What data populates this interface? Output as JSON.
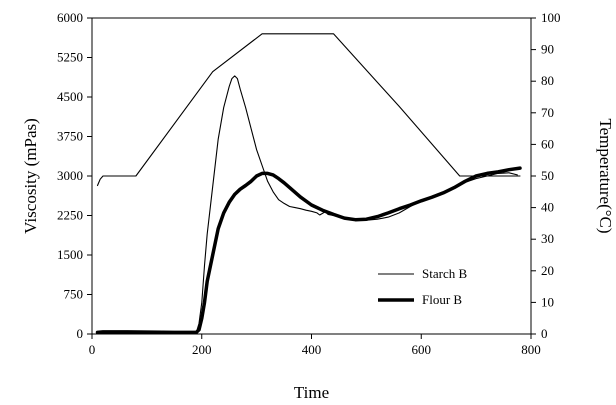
{
  "chart_data": {
    "type": "line",
    "title": "",
    "xlabel": "Time",
    "ylabel": "Viscosity (mPas)",
    "y2label": "Temperature(°C)",
    "xlim": [
      0,
      800
    ],
    "ylim": [
      0,
      6000
    ],
    "y2lim": [
      0,
      100
    ],
    "x_ticks": [
      "0",
      "200",
      "400",
      "600",
      "800"
    ],
    "y_ticks": [
      "0",
      "750",
      "1500",
      "2250",
      "3000",
      "3750",
      "4500",
      "5250",
      "6000"
    ],
    "y2_ticks": [
      "0",
      "10",
      "20",
      "30",
      "40",
      "50",
      "60",
      "70",
      "80",
      "90",
      "100"
    ],
    "grid": false,
    "legend_position": "lower-right",
    "series": [
      {
        "name": "Starch B",
        "axis": "left",
        "style": "thin",
        "points": [
          [
            10,
            30
          ],
          [
            20,
            40
          ],
          [
            60,
            40
          ],
          [
            150,
            30
          ],
          [
            190,
            30
          ],
          [
            195,
            200
          ],
          [
            200,
            600
          ],
          [
            205,
            1300
          ],
          [
            210,
            1900
          ],
          [
            220,
            2800
          ],
          [
            230,
            3700
          ],
          [
            240,
            4300
          ],
          [
            250,
            4700
          ],
          [
            255,
            4850
          ],
          [
            260,
            4900
          ],
          [
            265,
            4850
          ],
          [
            270,
            4650
          ],
          [
            280,
            4300
          ],
          [
            290,
            3900
          ],
          [
            300,
            3500
          ],
          [
            310,
            3200
          ],
          [
            320,
            2900
          ],
          [
            330,
            2700
          ],
          [
            340,
            2550
          ],
          [
            350,
            2480
          ],
          [
            360,
            2420
          ],
          [
            370,
            2400
          ],
          [
            380,
            2380
          ],
          [
            390,
            2350
          ],
          [
            400,
            2330
          ],
          [
            410,
            2300
          ],
          [
            415,
            2260
          ],
          [
            425,
            2320
          ],
          [
            430,
            2270
          ],
          [
            440,
            2250
          ],
          [
            460,
            2200
          ],
          [
            480,
            2170
          ],
          [
            500,
            2160
          ],
          [
            520,
            2180
          ],
          [
            540,
            2220
          ],
          [
            560,
            2300
          ],
          [
            580,
            2420
          ],
          [
            600,
            2530
          ],
          [
            620,
            2620
          ],
          [
            640,
            2700
          ],
          [
            660,
            2780
          ],
          [
            680,
            2880
          ],
          [
            700,
            2950
          ],
          [
            720,
            3000
          ],
          [
            740,
            3050
          ],
          [
            760,
            3060
          ],
          [
            775,
            3020
          ]
        ]
      },
      {
        "name": "Flour B",
        "axis": "left",
        "style": "thick",
        "points": [
          [
            10,
            30
          ],
          [
            20,
            40
          ],
          [
            60,
            40
          ],
          [
            150,
            30
          ],
          [
            190,
            30
          ],
          [
            195,
            80
          ],
          [
            200,
            300
          ],
          [
            205,
            600
          ],
          [
            210,
            1000
          ],
          [
            220,
            1500
          ],
          [
            230,
            2000
          ],
          [
            240,
            2300
          ],
          [
            250,
            2500
          ],
          [
            260,
            2650
          ],
          [
            270,
            2750
          ],
          [
            280,
            2820
          ],
          [
            290,
            2900
          ],
          [
            300,
            3000
          ],
          [
            310,
            3050
          ],
          [
            320,
            3050
          ],
          [
            330,
            3020
          ],
          [
            340,
            2950
          ],
          [
            350,
            2870
          ],
          [
            360,
            2780
          ],
          [
            380,
            2600
          ],
          [
            400,
            2450
          ],
          [
            420,
            2350
          ],
          [
            440,
            2270
          ],
          [
            460,
            2200
          ],
          [
            480,
            2170
          ],
          [
            500,
            2180
          ],
          [
            520,
            2230
          ],
          [
            540,
            2300
          ],
          [
            560,
            2380
          ],
          [
            580,
            2450
          ],
          [
            600,
            2530
          ],
          [
            620,
            2600
          ],
          [
            640,
            2680
          ],
          [
            660,
            2780
          ],
          [
            680,
            2900
          ],
          [
            700,
            3000
          ],
          [
            720,
            3050
          ],
          [
            740,
            3080
          ],
          [
            760,
            3120
          ],
          [
            780,
            3150
          ]
        ]
      },
      {
        "name": "Temperature",
        "axis": "right",
        "style": "thin",
        "points": [
          [
            10,
            47
          ],
          [
            15,
            49
          ],
          [
            20,
            50
          ],
          [
            80,
            50
          ],
          [
            220,
            83
          ],
          [
            310,
            95
          ],
          [
            320,
            95
          ],
          [
            330,
            95
          ],
          [
            440,
            95
          ],
          [
            560,
            72
          ],
          [
            670,
            50
          ],
          [
            680,
            50
          ],
          [
            700,
            50
          ],
          [
            780,
            50
          ]
        ]
      }
    ]
  }
}
